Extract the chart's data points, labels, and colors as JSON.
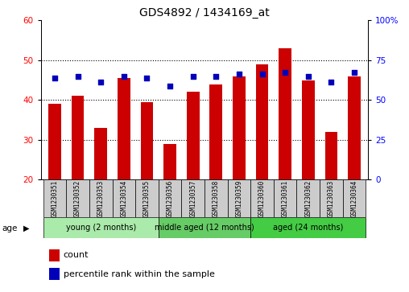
{
  "title": "GDS4892 / 1434169_at",
  "samples": [
    "GSM1230351",
    "GSM1230352",
    "GSM1230353",
    "GSM1230354",
    "GSM1230355",
    "GSM1230356",
    "GSM1230357",
    "GSM1230358",
    "GSM1230359",
    "GSM1230360",
    "GSM1230361",
    "GSM1230362",
    "GSM1230363",
    "GSM1230364"
  ],
  "counts": [
    39,
    41,
    33,
    45.5,
    39.5,
    29,
    42,
    44,
    46,
    49,
    53,
    45,
    32,
    46
  ],
  "percentiles_left": [
    45.5,
    46,
    44.5,
    46,
    45.5,
    43.5,
    46,
    46,
    46.5,
    46.5,
    47,
    46,
    44.5,
    47
  ],
  "ylim_left": [
    20,
    60
  ],
  "ylim_right": [
    0,
    100
  ],
  "yticks_left": [
    20,
    30,
    40,
    50,
    60
  ],
  "yticks_right": [
    0,
    25,
    50,
    75,
    100
  ],
  "ytick_labels_right": [
    "0",
    "25",
    "50",
    "75",
    "100%"
  ],
  "groups": [
    {
      "label": "young (2 months)",
      "start": 0,
      "end": 5,
      "color": "#AAEAAA"
    },
    {
      "label": "middle aged (12 months)",
      "start": 5,
      "end": 9,
      "color": "#66CC66"
    },
    {
      "label": "aged (24 months)",
      "start": 9,
      "end": 14,
      "color": "#44CC44"
    }
  ],
  "bar_color": "#CC0000",
  "dot_color": "#0000BB",
  "bar_width": 0.55,
  "grid_color": "#000000",
  "sample_box_color": "#CCCCCC",
  "plot_bg": "#FFFFFF",
  "age_label": "age",
  "legend_count_label": "count",
  "legend_pct_label": "percentile rank within the sample",
  "title_fontsize": 10,
  "tick_fontsize": 7.5,
  "sample_fontsize": 5.5,
  "group_fontsize": 7,
  "legend_fontsize": 8
}
